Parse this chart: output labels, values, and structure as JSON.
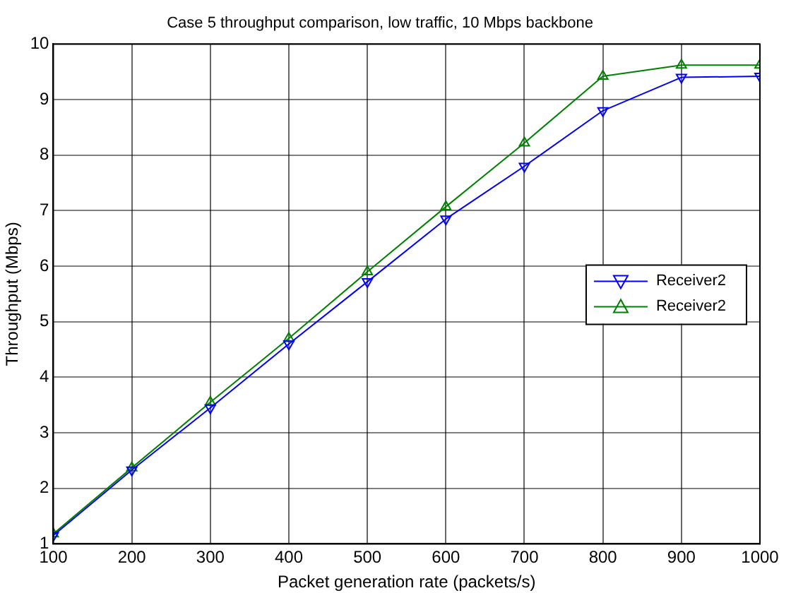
{
  "chart_data": {
    "type": "line",
    "title": "Case 5 throughput comparison, low traffic, 10 Mbps backbone",
    "xlabel": "Packet generation rate (packets/s)",
    "ylabel": "Throughput (Mbps)",
    "x": [
      100,
      200,
      300,
      400,
      500,
      600,
      700,
      800,
      900,
      1000
    ],
    "series": [
      {
        "name": "Receiver2",
        "color": "#0000ff",
        "values": [
          1.15,
          2.33,
          3.45,
          4.6,
          5.72,
          6.85,
          7.8,
          8.8,
          9.4,
          9.42
        ]
      },
      {
        "name": "Receiver2",
        "color": "#008000",
        "values": [
          1.18,
          2.37,
          3.55,
          4.7,
          5.9,
          7.07,
          8.22,
          9.42,
          9.62,
          9.62
        ]
      }
    ],
    "xlim": [
      100,
      1000
    ],
    "xticks": [
      100,
      200,
      300,
      400,
      500,
      600,
      700,
      800,
      900,
      1000
    ],
    "ylim": [
      1,
      10
    ],
    "yticks": [
      1,
      2,
      3,
      4,
      5,
      6,
      7,
      8,
      9,
      10
    ],
    "grid": true,
    "legend": "right",
    "marker": "triangle",
    "line_style": "solid"
  }
}
